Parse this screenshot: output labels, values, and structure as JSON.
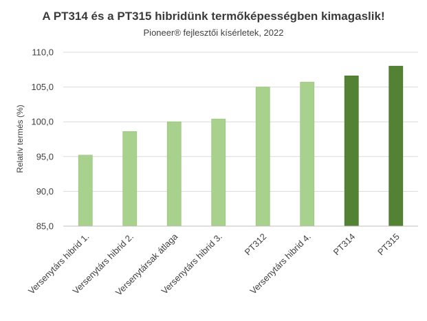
{
  "chart_data": {
    "type": "bar",
    "title": "A PT314 és a PT315 hibridünk termőképességben kimagaslik!",
    "subtitle": "Pioneer® fejlesztői kísérletek, 2022",
    "xlabel": "",
    "ylabel": "Relatív termés (%)",
    "ylim": [
      85,
      110
    ],
    "yticks": [
      85,
      90,
      95,
      100,
      105,
      110
    ],
    "ytick_labels": [
      "85,0",
      "90,0",
      "95,0",
      "100,0",
      "105,0",
      "110,0"
    ],
    "grid": true,
    "categories": [
      "Versenytárs hibrid 1.",
      "Versenytárs hibrid 2.",
      "Versenytársak átlaga",
      "Versenytárs hibrid 3.",
      "PT312",
      "Versenytárs hibrid 4.",
      "PT314",
      "PT315"
    ],
    "values": [
      95.2,
      98.6,
      100.0,
      100.4,
      105.0,
      105.7,
      106.6,
      108.0
    ],
    "highlight": [
      false,
      false,
      false,
      false,
      false,
      false,
      true,
      true
    ],
    "colors": {
      "default": "#a9d18e",
      "highlight": "#548235",
      "grid": "#d9d9d9",
      "axis": "#bfbfbf",
      "text": "#404040"
    }
  }
}
